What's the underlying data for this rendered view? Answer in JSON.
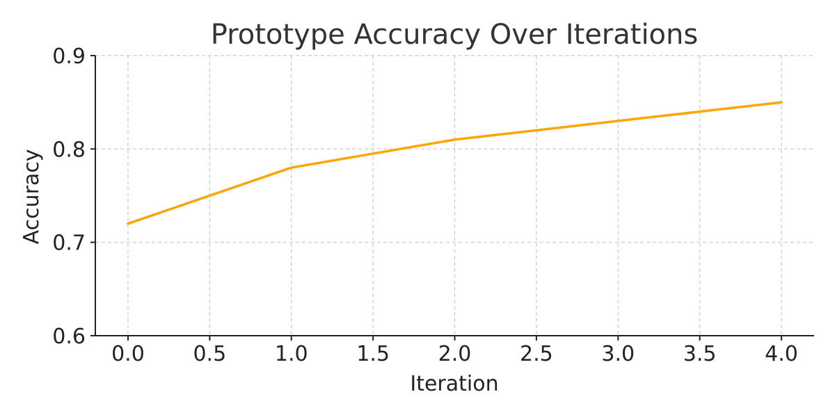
{
  "chart_data": {
    "type": "line",
    "title": "Prototype Accuracy Over Iterations",
    "xlabel": "Iteration",
    "ylabel": "Accuracy",
    "xlim": [
      -0.2,
      4.2
    ],
    "ylim": [
      0.6,
      0.9
    ],
    "xticks": [
      0.0,
      0.5,
      1.0,
      1.5,
      2.0,
      2.5,
      3.0,
      3.5,
      4.0
    ],
    "xtick_labels": [
      "0.0",
      "0.5",
      "1.0",
      "1.5",
      "2.0",
      "2.5",
      "3.0",
      "3.5",
      "4.0"
    ],
    "yticks": [
      0.6,
      0.7,
      0.8,
      0.9
    ],
    "ytick_labels": [
      "0.6",
      "0.7",
      "0.8",
      "0.9"
    ],
    "grid": true,
    "series": [
      {
        "color": "#FFA500",
        "x": [
          0,
          1,
          2,
          3,
          4
        ],
        "y": [
          0.72,
          0.78,
          0.81,
          0.83,
          0.85
        ]
      }
    ]
  }
}
